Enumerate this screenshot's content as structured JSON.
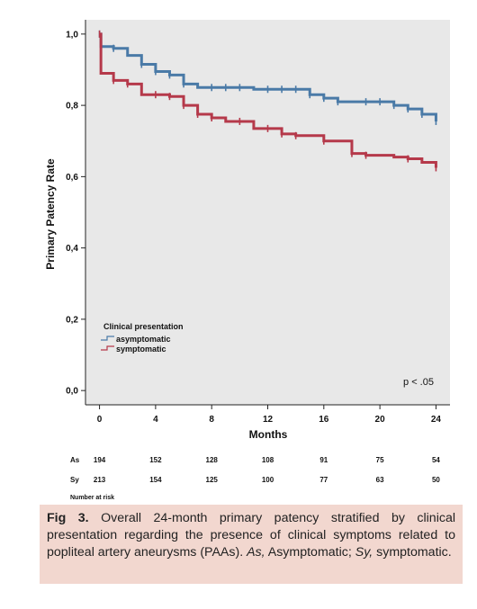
{
  "chart_data": {
    "type": "line",
    "step": true,
    "ylabel": "Primary Patency Rate",
    "xlabel": "Months",
    "xlim": [
      -1,
      25
    ],
    "ylim": [
      -0.04,
      1.04
    ],
    "x_ticks": [
      0,
      4,
      8,
      12,
      16,
      20,
      24
    ],
    "x_tick_labels": [
      "0",
      "4",
      "8",
      "12",
      "16",
      "20",
      "24"
    ],
    "y_ticks": [
      0.0,
      0.2,
      0.4,
      0.6,
      0.8,
      1.0
    ],
    "y_tick_labels": [
      "0,0",
      "0,2",
      "0,4",
      "0,6",
      "0,8",
      "1,0"
    ],
    "grid": false,
    "legend_title": "Clinical presentation",
    "legend_position": "bottom-left",
    "annotation": "p < .05",
    "series": [
      {
        "name": "asymptomatic",
        "color": "#4a7aa7",
        "points": [
          [
            0,
            1.0
          ],
          [
            0.1,
            0.965
          ],
          [
            1,
            0.96
          ],
          [
            2,
            0.94
          ],
          [
            3,
            0.915
          ],
          [
            4,
            0.895
          ],
          [
            5,
            0.885
          ],
          [
            6,
            0.86
          ],
          [
            7,
            0.85
          ],
          [
            8,
            0.85
          ],
          [
            9,
            0.85
          ],
          [
            10,
            0.85
          ],
          [
            11,
            0.845
          ],
          [
            12,
            0.845
          ],
          [
            13,
            0.845
          ],
          [
            14,
            0.845
          ],
          [
            15,
            0.83
          ],
          [
            16,
            0.82
          ],
          [
            17,
            0.81
          ],
          [
            18,
            0.81
          ],
          [
            19,
            0.81
          ],
          [
            20,
            0.81
          ],
          [
            21,
            0.8
          ],
          [
            22,
            0.79
          ],
          [
            23,
            0.775
          ],
          [
            24,
            0.755
          ]
        ],
        "censor_marks": [
          [
            0,
            1.0
          ],
          [
            1,
            0.96
          ],
          [
            3,
            0.915
          ],
          [
            4,
            0.895
          ],
          [
            5,
            0.885
          ],
          [
            6,
            0.86
          ],
          [
            8,
            0.85
          ],
          [
            9,
            0.85
          ],
          [
            10,
            0.85
          ],
          [
            12,
            0.845
          ],
          [
            13,
            0.845
          ],
          [
            14,
            0.845
          ],
          [
            15,
            0.83
          ],
          [
            16,
            0.82
          ],
          [
            17,
            0.81
          ],
          [
            19,
            0.81
          ],
          [
            20,
            0.81
          ],
          [
            21,
            0.8
          ],
          [
            22,
            0.79
          ],
          [
            23,
            0.775
          ],
          [
            24,
            0.755
          ]
        ]
      },
      {
        "name": "symptomatic",
        "color": "#b5394a",
        "points": [
          [
            0,
            1.0
          ],
          [
            0.1,
            0.89
          ],
          [
            1,
            0.87
          ],
          [
            2,
            0.86
          ],
          [
            3,
            0.83
          ],
          [
            4,
            0.83
          ],
          [
            5,
            0.825
          ],
          [
            6,
            0.8
          ],
          [
            7,
            0.775
          ],
          [
            8,
            0.765
          ],
          [
            9,
            0.755
          ],
          [
            10,
            0.755
          ],
          [
            11,
            0.735
          ],
          [
            12,
            0.735
          ],
          [
            13,
            0.72
          ],
          [
            14,
            0.715
          ],
          [
            15,
            0.715
          ],
          [
            16,
            0.7
          ],
          [
            17,
            0.7
          ],
          [
            18,
            0.665
          ],
          [
            19,
            0.66
          ],
          [
            20,
            0.66
          ],
          [
            21,
            0.655
          ],
          [
            22,
            0.65
          ],
          [
            23,
            0.64
          ],
          [
            24,
            0.625
          ]
        ],
        "censor_marks": [
          [
            0,
            1.0
          ],
          [
            1,
            0.87
          ],
          [
            2,
            0.86
          ],
          [
            4,
            0.83
          ],
          [
            5,
            0.825
          ],
          [
            6,
            0.8
          ],
          [
            7,
            0.775
          ],
          [
            8,
            0.765
          ],
          [
            10,
            0.755
          ],
          [
            12,
            0.735
          ],
          [
            13,
            0.72
          ],
          [
            14,
            0.715
          ],
          [
            16,
            0.7
          ],
          [
            18,
            0.665
          ],
          [
            19,
            0.66
          ],
          [
            22,
            0.65
          ],
          [
            24,
            0.625
          ]
        ]
      }
    ],
    "risk_table": {
      "title": "Number at risk",
      "rows": [
        {
          "label": "As",
          "values": [
            "194",
            "152",
            "128",
            "108",
            "91",
            "75",
            "54"
          ]
        },
        {
          "label": "Sy",
          "values": [
            "213",
            "154",
            "125",
            "100",
            "77",
            "63",
            "50"
          ]
        }
      ]
    }
  },
  "colors": {
    "plot_background": "#e8e8e8",
    "caption_background": "#f2d7cf"
  },
  "caption": {
    "label": "Fig 3.",
    "text1": " Overall 24-month primary patency stratified by clinical presentation regarding the presence of clinical symptoms related to popliteal artery aneurysms (PAAs). ",
    "as_abbrev": "As,",
    "as_text": " Asymptomatic; ",
    "sy_abbrev": "Sy,",
    "sy_text": " symptomatic."
  }
}
